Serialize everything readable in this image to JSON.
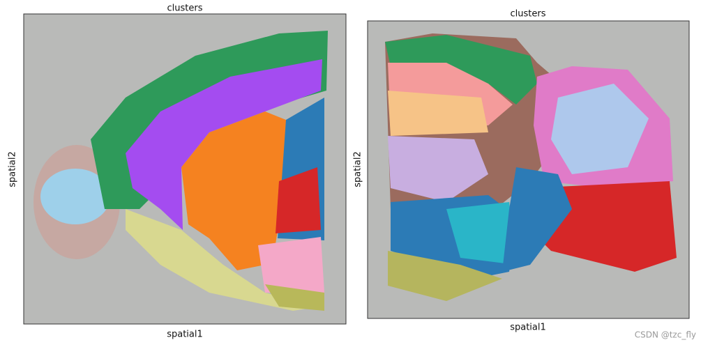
{
  "panels": [
    {
      "title": "clusters",
      "xlabel": "spatial1",
      "ylabel": "spatial2"
    },
    {
      "title": "clusters",
      "xlabel": "spatial1",
      "ylabel": "spatial2"
    }
  ],
  "watermark": "CSDN @tzc_fly"
}
